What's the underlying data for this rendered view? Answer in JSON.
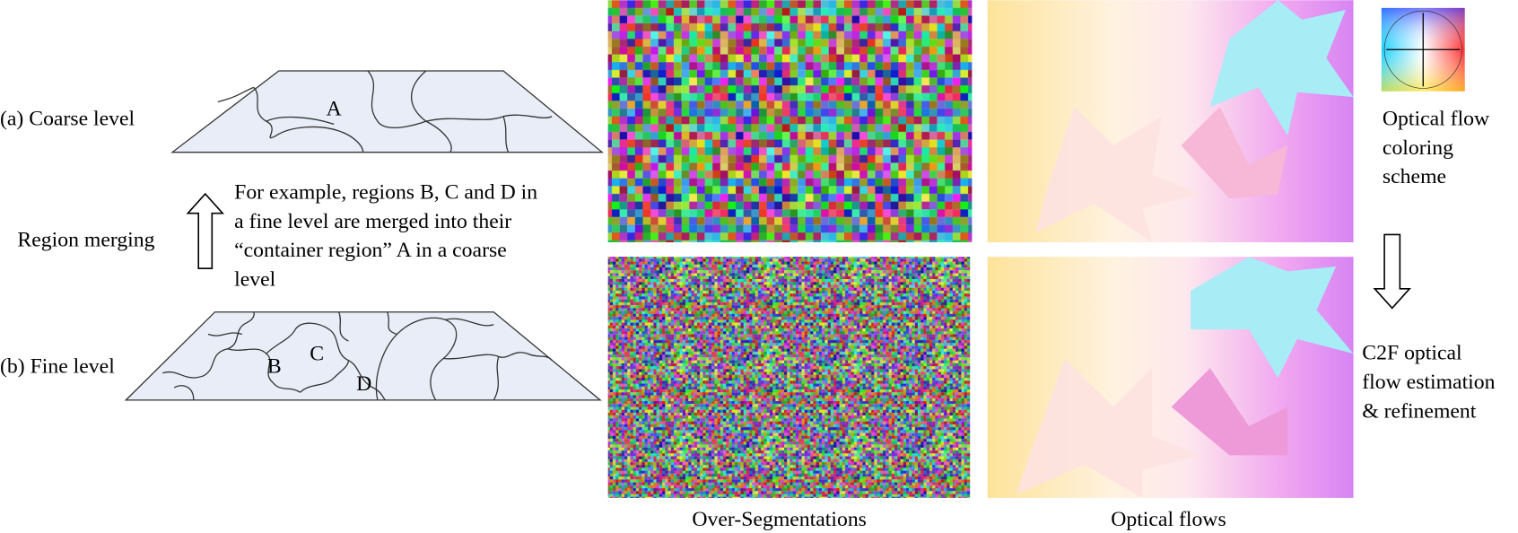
{
  "left": {
    "coarse_label": "(a) Coarse level",
    "coarse_region": "A",
    "merging_label": "Region merging",
    "example_lines": [
      "For example, regions B, C and D in",
      "a fine level are merged into their",
      "“container region” A in a coarse",
      "level"
    ],
    "fine_label": "(b) Fine level",
    "fine_regions": [
      "B",
      "C",
      "D"
    ]
  },
  "captions": {
    "segmentations": "Over-Segmentations",
    "flows": "Optical flows"
  },
  "right": {
    "coloring_lines": [
      "Optical flow",
      "coloring",
      "scheme"
    ],
    "c2f_lines": [
      "C2F optical",
      "flow estimation",
      "& refinement"
    ]
  }
}
